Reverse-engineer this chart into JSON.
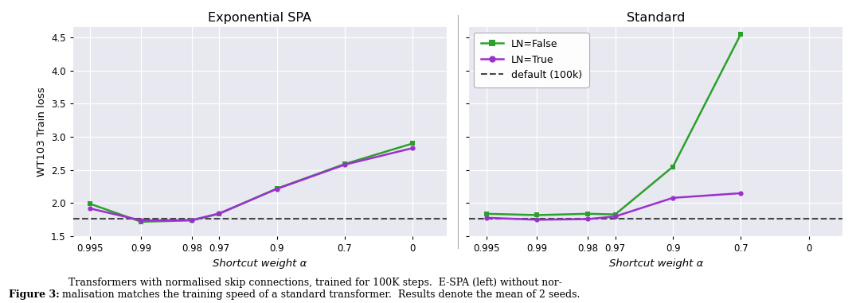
{
  "left_title": "Exponential SPA",
  "right_title": "Standard",
  "xlabel": "Shortcut weight α",
  "ylabel": "WT103 Train loss",
  "x_tick_labels": [
    "0.995",
    "0.99",
    "0.98",
    "0.97",
    "0.9",
    "0.7",
    "0"
  ],
  "x_positions": [
    0,
    1,
    2,
    3,
    4,
    5,
    6
  ],
  "left_ln_false": [
    1.99,
    1.72,
    1.74,
    1.84,
    2.22,
    2.59,
    2.9
  ],
  "left_ln_true": [
    1.92,
    1.74,
    1.745,
    1.845,
    2.215,
    2.58,
    2.83
  ],
  "right_ln_false": [
    1.84,
    1.82,
    1.84,
    1.83,
    2.55,
    4.55
  ],
  "right_ln_true": [
    1.78,
    1.75,
    1.76,
    1.8,
    2.08,
    2.15
  ],
  "right_x_positions": [
    0,
    1,
    2,
    3,
    4,
    5
  ],
  "right_x_tick_labels": [
    "0.995",
    "0.99",
    "0.98",
    "0.97",
    "0.9",
    "0.7",
    "0"
  ],
  "default_val": 1.765,
  "ylim": [
    1.5,
    4.65
  ],
  "yticks": [
    1.5,
    2.0,
    2.5,
    3.0,
    3.5,
    4.0,
    4.5
  ],
  "color_green": "#2da02c",
  "color_purple": "#9b30d0",
  "color_default": "#444444",
  "bg_color": "#e8e8f0",
  "caption_bold": "Figure 3:",
  "caption_rest": "  Transformers with normalised skip connections, trained for 100K steps.  E-SPA (left) without nor-\nmalisation matches the training speed of a standard transformer.  Results denote the mean of 2 seeds."
}
